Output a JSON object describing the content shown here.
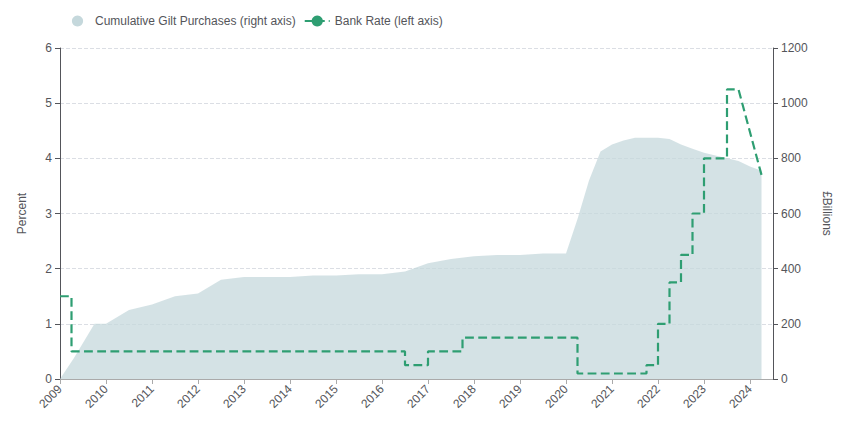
{
  "chart_data": {
    "type": "line",
    "xlim": [
      2009.0,
      2024.5
    ],
    "xticks": [
      2009,
      2010,
      2011,
      2012,
      2013,
      2014,
      2015,
      2016,
      2017,
      2018,
      2019,
      2020,
      2021,
      2022,
      2023,
      2024
    ],
    "ylim": [
      0,
      6
    ],
    "yticks": [
      0,
      1,
      2,
      3,
      4,
      5,
      6
    ],
    "y2lim": [
      0,
      1200
    ],
    "y2ticks": [
      0,
      200,
      400,
      600,
      800,
      1000,
      1200
    ],
    "ylabel": "Percent",
    "y2label": "£Billions",
    "grid": true,
    "legend": "upper left",
    "series": [
      {
        "name": "Cumulative Gilt Purchases (right axis)",
        "type": "area",
        "axis": "y2",
        "color": "#c5d8dc",
        "x": [
          2009.0,
          2009.3,
          2009.75,
          2010.0,
          2010.5,
          2011.0,
          2011.5,
          2012.0,
          2012.5,
          2013.0,
          2014.0,
          2014.5,
          2015.0,
          2015.5,
          2016.0,
          2016.5,
          2017.0,
          2017.5,
          2018.0,
          2018.5,
          2019.0,
          2019.5,
          2020.0,
          2020.25,
          2020.5,
          2020.75,
          2021.0,
          2021.25,
          2021.5,
          2021.75,
          2022.0,
          2022.25,
          2022.5,
          2022.75,
          2023.0,
          2023.25,
          2023.5,
          2023.75,
          2024.0,
          2024.25
        ],
        "values": [
          0,
          75,
          200,
          200,
          250,
          270,
          300,
          310,
          360,
          370,
          370,
          375,
          375,
          380,
          380,
          390,
          420,
          435,
          445,
          450,
          450,
          455,
          455,
          580,
          720,
          825,
          850,
          865,
          875,
          875,
          875,
          870,
          850,
          835,
          820,
          810,
          800,
          790,
          770,
          755
        ]
      },
      {
        "name": "Bank Rate (left axis)",
        "type": "line",
        "line_style": "dashed",
        "color": "#2e9e72",
        "x": [
          2009.0,
          2009.25,
          2009.25,
          2016.5,
          2016.5,
          2017.0,
          2017.0,
          2017.75,
          2017.75,
          2018.75,
          2018.75,
          2019.75,
          2019.75,
          2020.25,
          2020.25,
          2020.5,
          2020.5,
          2021.75,
          2021.75,
          2022.0,
          2022.0,
          2022.25,
          2022.25,
          2022.5,
          2022.5,
          2022.75,
          2022.75,
          2023.0,
          2023.0,
          2023.5,
          2023.5,
          2023.75,
          2023.75,
          2024.25
        ],
        "values": [
          1.5,
          1.5,
          0.5,
          0.5,
          0.25,
          0.25,
          0.5,
          0.5,
          0.75,
          0.75,
          0.75,
          0.75,
          0.75,
          0.75,
          0.1,
          0.1,
          0.1,
          0.1,
          0.25,
          0.25,
          1.0,
          1.0,
          1.75,
          1.75,
          2.25,
          2.25,
          3.0,
          3.0,
          4.0,
          4.0,
          5.25,
          5.25,
          5.25,
          3.7
        ]
      }
    ]
  }
}
